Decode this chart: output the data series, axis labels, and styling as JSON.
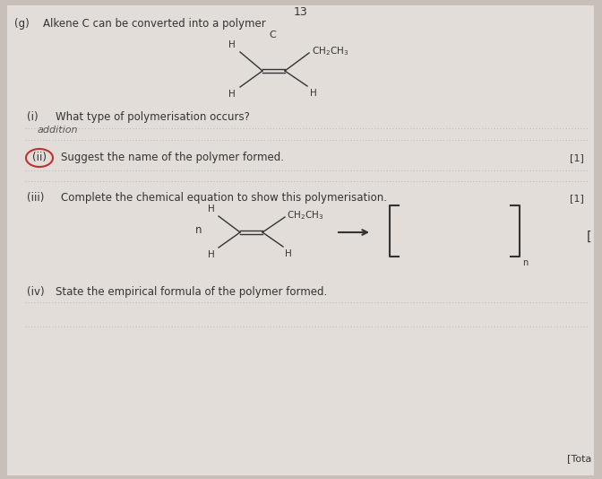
{
  "background_color": "#c8c0b8",
  "page_color": "#e2ddd8",
  "title_number": "13",
  "g_label": "(g)",
  "g_text": "Alkene C can be converted into a polymer",
  "i_label": "(i)",
  "i_text": "What type of polymerisation occurs?",
  "i_answer": "addition",
  "ii_label": "(ii)",
  "ii_text": "Suggest the name of the polymer formed.",
  "ii_mark": "[1]",
  "iii_label": "(iii)",
  "iii_text": "Complete the chemical equation to show this polymerisation.",
  "iii_mark": "[1]",
  "iv_label": "(iv)",
  "iv_text": "State the empirical formula of the polymer formed.",
  "total_text": "[Tota",
  "dotted_line_color": "#aaaaaa",
  "text_color": "#333333",
  "circle_color": "#bb3333"
}
